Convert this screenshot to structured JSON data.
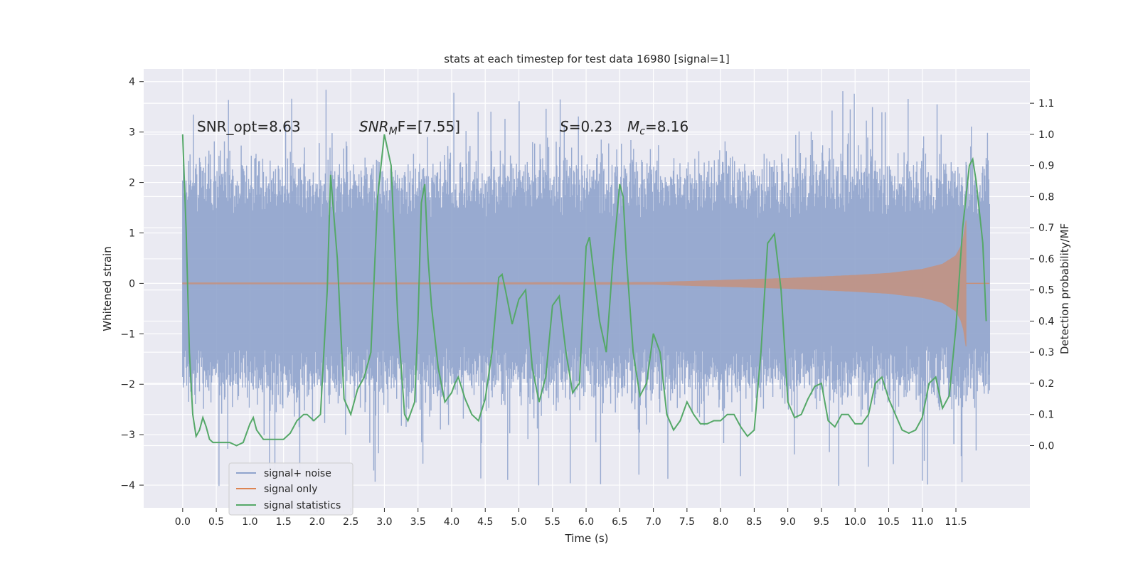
{
  "chart_data": {
    "type": "line",
    "title": "stats at each timestep for test data 16980 [signal=1]",
    "xlabel": "Time (s)",
    "ylabel": "Whitened strain",
    "ylabel_right": "Detection probability/MF",
    "xlim": [
      -0.58,
      12.6
    ],
    "ylim": [
      -4.45,
      4.25
    ],
    "ylim_right": [
      -0.2,
      1.21
    ],
    "x_ticks": [
      0.0,
      0.5,
      1.0,
      1.5,
      2.0,
      2.5,
      3.0,
      3.5,
      4.0,
      4.5,
      5.0,
      5.5,
      6.0,
      6.5,
      7.0,
      7.5,
      8.0,
      8.5,
      9.0,
      9.5,
      10.0,
      10.5,
      11.0,
      11.5
    ],
    "x_tick_labels": [
      "0.0",
      "0.5",
      "1.0",
      "1.5",
      "2.0",
      "2.5",
      "3.0",
      "3.5",
      "4.0",
      "4.5",
      "5.0",
      "5.5",
      "6.0",
      "6.5",
      "7.0",
      "7.5",
      "8.0",
      "8.5",
      "9.0",
      "9.5",
      "10.0",
      "10.5",
      "11.0",
      "11.5"
    ],
    "y_ticks": [
      4,
      3,
      2,
      1,
      0,
      -1,
      -2,
      -3,
      -4
    ],
    "y_tick_labels": [
      "4",
      "3",
      "2",
      "1",
      "0",
      "−1",
      "−2",
      "−3",
      "−4"
    ],
    "y_ticks_right": [
      1.1,
      1.0,
      0.9,
      0.8,
      0.7,
      0.6,
      0.5,
      0.4,
      0.3,
      0.2,
      0.1,
      0.0
    ],
    "y_tick_labels_right": [
      "1.1",
      "1.0",
      "0.9",
      "0.8",
      "0.7",
      "0.6",
      "0.5",
      "0.4",
      "0.3",
      "0.2",
      "0.1",
      "0.0"
    ],
    "grid": true,
    "legend_position": "lower-left",
    "annotations": {
      "snr_opt": "SNR_opt=8.63",
      "snr_mf_main": "SNR",
      "snr_mf_sub": "M",
      "snr_mf_tail": "F=[7.55]",
      "s_main": "S",
      "s_value": "=0.23",
      "mc_main": "M",
      "mc_sub": "c",
      "mc_value": "=8.16"
    },
    "series": [
      {
        "name": "signal+ noise",
        "color": "#8fa3cc",
        "kind": "noise",
        "x_range": [
          0.0,
          12.0
        ],
        "samples": 1200,
        "envelope_low": -2.2,
        "envelope_high": 2.3,
        "max_spike": 3.85,
        "min_spike": -4.05
      },
      {
        "name": "signal only",
        "color": "#dd8452",
        "kind": "chirp",
        "x_range": [
          0.0,
          11.65
        ],
        "amplitude_points": [
          [
            0.0,
            0.0
          ],
          [
            7.0,
            0.02
          ],
          [
            8.0,
            0.06
          ],
          [
            9.0,
            0.1
          ],
          [
            10.0,
            0.16
          ],
          [
            10.5,
            0.2
          ],
          [
            11.0,
            0.28
          ],
          [
            11.3,
            0.38
          ],
          [
            11.5,
            0.55
          ],
          [
            11.6,
            0.8
          ],
          [
            11.65,
            1.25
          ]
        ]
      },
      {
        "name": "signal statistics",
        "color": "#55a868",
        "kind": "line",
        "axis": "right",
        "x": [
          0.0,
          0.05,
          0.1,
          0.15,
          0.2,
          0.25,
          0.3,
          0.35,
          0.4,
          0.45,
          0.5,
          0.6,
          0.7,
          0.8,
          0.9,
          1.0,
          1.05,
          1.1,
          1.2,
          1.3,
          1.4,
          1.5,
          1.6,
          1.7,
          1.8,
          1.85,
          1.95,
          2.05,
          2.15,
          2.2,
          2.3,
          2.4,
          2.5,
          2.6,
          2.7,
          2.8,
          2.9,
          3.0,
          3.1,
          3.2,
          3.3,
          3.35,
          3.45,
          3.5,
          3.55,
          3.6,
          3.65,
          3.7,
          3.8,
          3.9,
          4.0,
          4.05,
          4.1,
          4.2,
          4.3,
          4.4,
          4.5,
          4.6,
          4.7,
          4.75,
          4.8,
          4.9,
          5.0,
          5.1,
          5.2,
          5.3,
          5.4,
          5.5,
          5.6,
          5.7,
          5.8,
          5.9,
          6.0,
          6.05,
          6.1,
          6.2,
          6.3,
          6.4,
          6.5,
          6.55,
          6.6,
          6.7,
          6.8,
          6.9,
          7.0,
          7.1,
          7.2,
          7.3,
          7.4,
          7.5,
          7.6,
          7.7,
          7.8,
          7.9,
          8.0,
          8.1,
          8.2,
          8.3,
          8.4,
          8.5,
          8.6,
          8.7,
          8.8,
          8.9,
          9.0,
          9.1,
          9.2,
          9.3,
          9.4,
          9.5,
          9.6,
          9.7,
          9.8,
          9.9,
          10.0,
          10.1,
          10.2,
          10.3,
          10.4,
          10.5,
          10.6,
          10.7,
          10.8,
          10.9,
          11.0,
          11.1,
          11.2,
          11.3,
          11.4,
          11.5,
          11.6,
          11.7,
          11.75,
          11.8,
          11.9,
          11.95
        ],
        "y": [
          1.0,
          0.7,
          0.3,
          0.1,
          0.03,
          0.05,
          0.09,
          0.06,
          0.02,
          0.01,
          0.01,
          0.01,
          0.01,
          0.0,
          0.01,
          0.07,
          0.09,
          0.05,
          0.02,
          0.02,
          0.02,
          0.02,
          0.04,
          0.08,
          0.1,
          0.1,
          0.08,
          0.1,
          0.5,
          0.87,
          0.6,
          0.15,
          0.1,
          0.18,
          0.22,
          0.3,
          0.8,
          1.0,
          0.9,
          0.4,
          0.1,
          0.08,
          0.14,
          0.4,
          0.78,
          0.84,
          0.6,
          0.45,
          0.25,
          0.14,
          0.17,
          0.2,
          0.22,
          0.15,
          0.1,
          0.08,
          0.15,
          0.3,
          0.54,
          0.55,
          0.5,
          0.39,
          0.47,
          0.5,
          0.25,
          0.14,
          0.22,
          0.45,
          0.48,
          0.3,
          0.17,
          0.2,
          0.64,
          0.67,
          0.58,
          0.4,
          0.3,
          0.6,
          0.84,
          0.8,
          0.6,
          0.3,
          0.16,
          0.2,
          0.36,
          0.3,
          0.1,
          0.05,
          0.08,
          0.14,
          0.1,
          0.07,
          0.07,
          0.08,
          0.08,
          0.1,
          0.1,
          0.06,
          0.03,
          0.05,
          0.3,
          0.65,
          0.68,
          0.5,
          0.14,
          0.09,
          0.1,
          0.15,
          0.19,
          0.2,
          0.08,
          0.06,
          0.1,
          0.1,
          0.07,
          0.07,
          0.1,
          0.2,
          0.22,
          0.15,
          0.1,
          0.05,
          0.04,
          0.05,
          0.09,
          0.2,
          0.22,
          0.12,
          0.16,
          0.38,
          0.7,
          0.9,
          0.92,
          0.85,
          0.65,
          0.4
        ]
      }
    ]
  }
}
